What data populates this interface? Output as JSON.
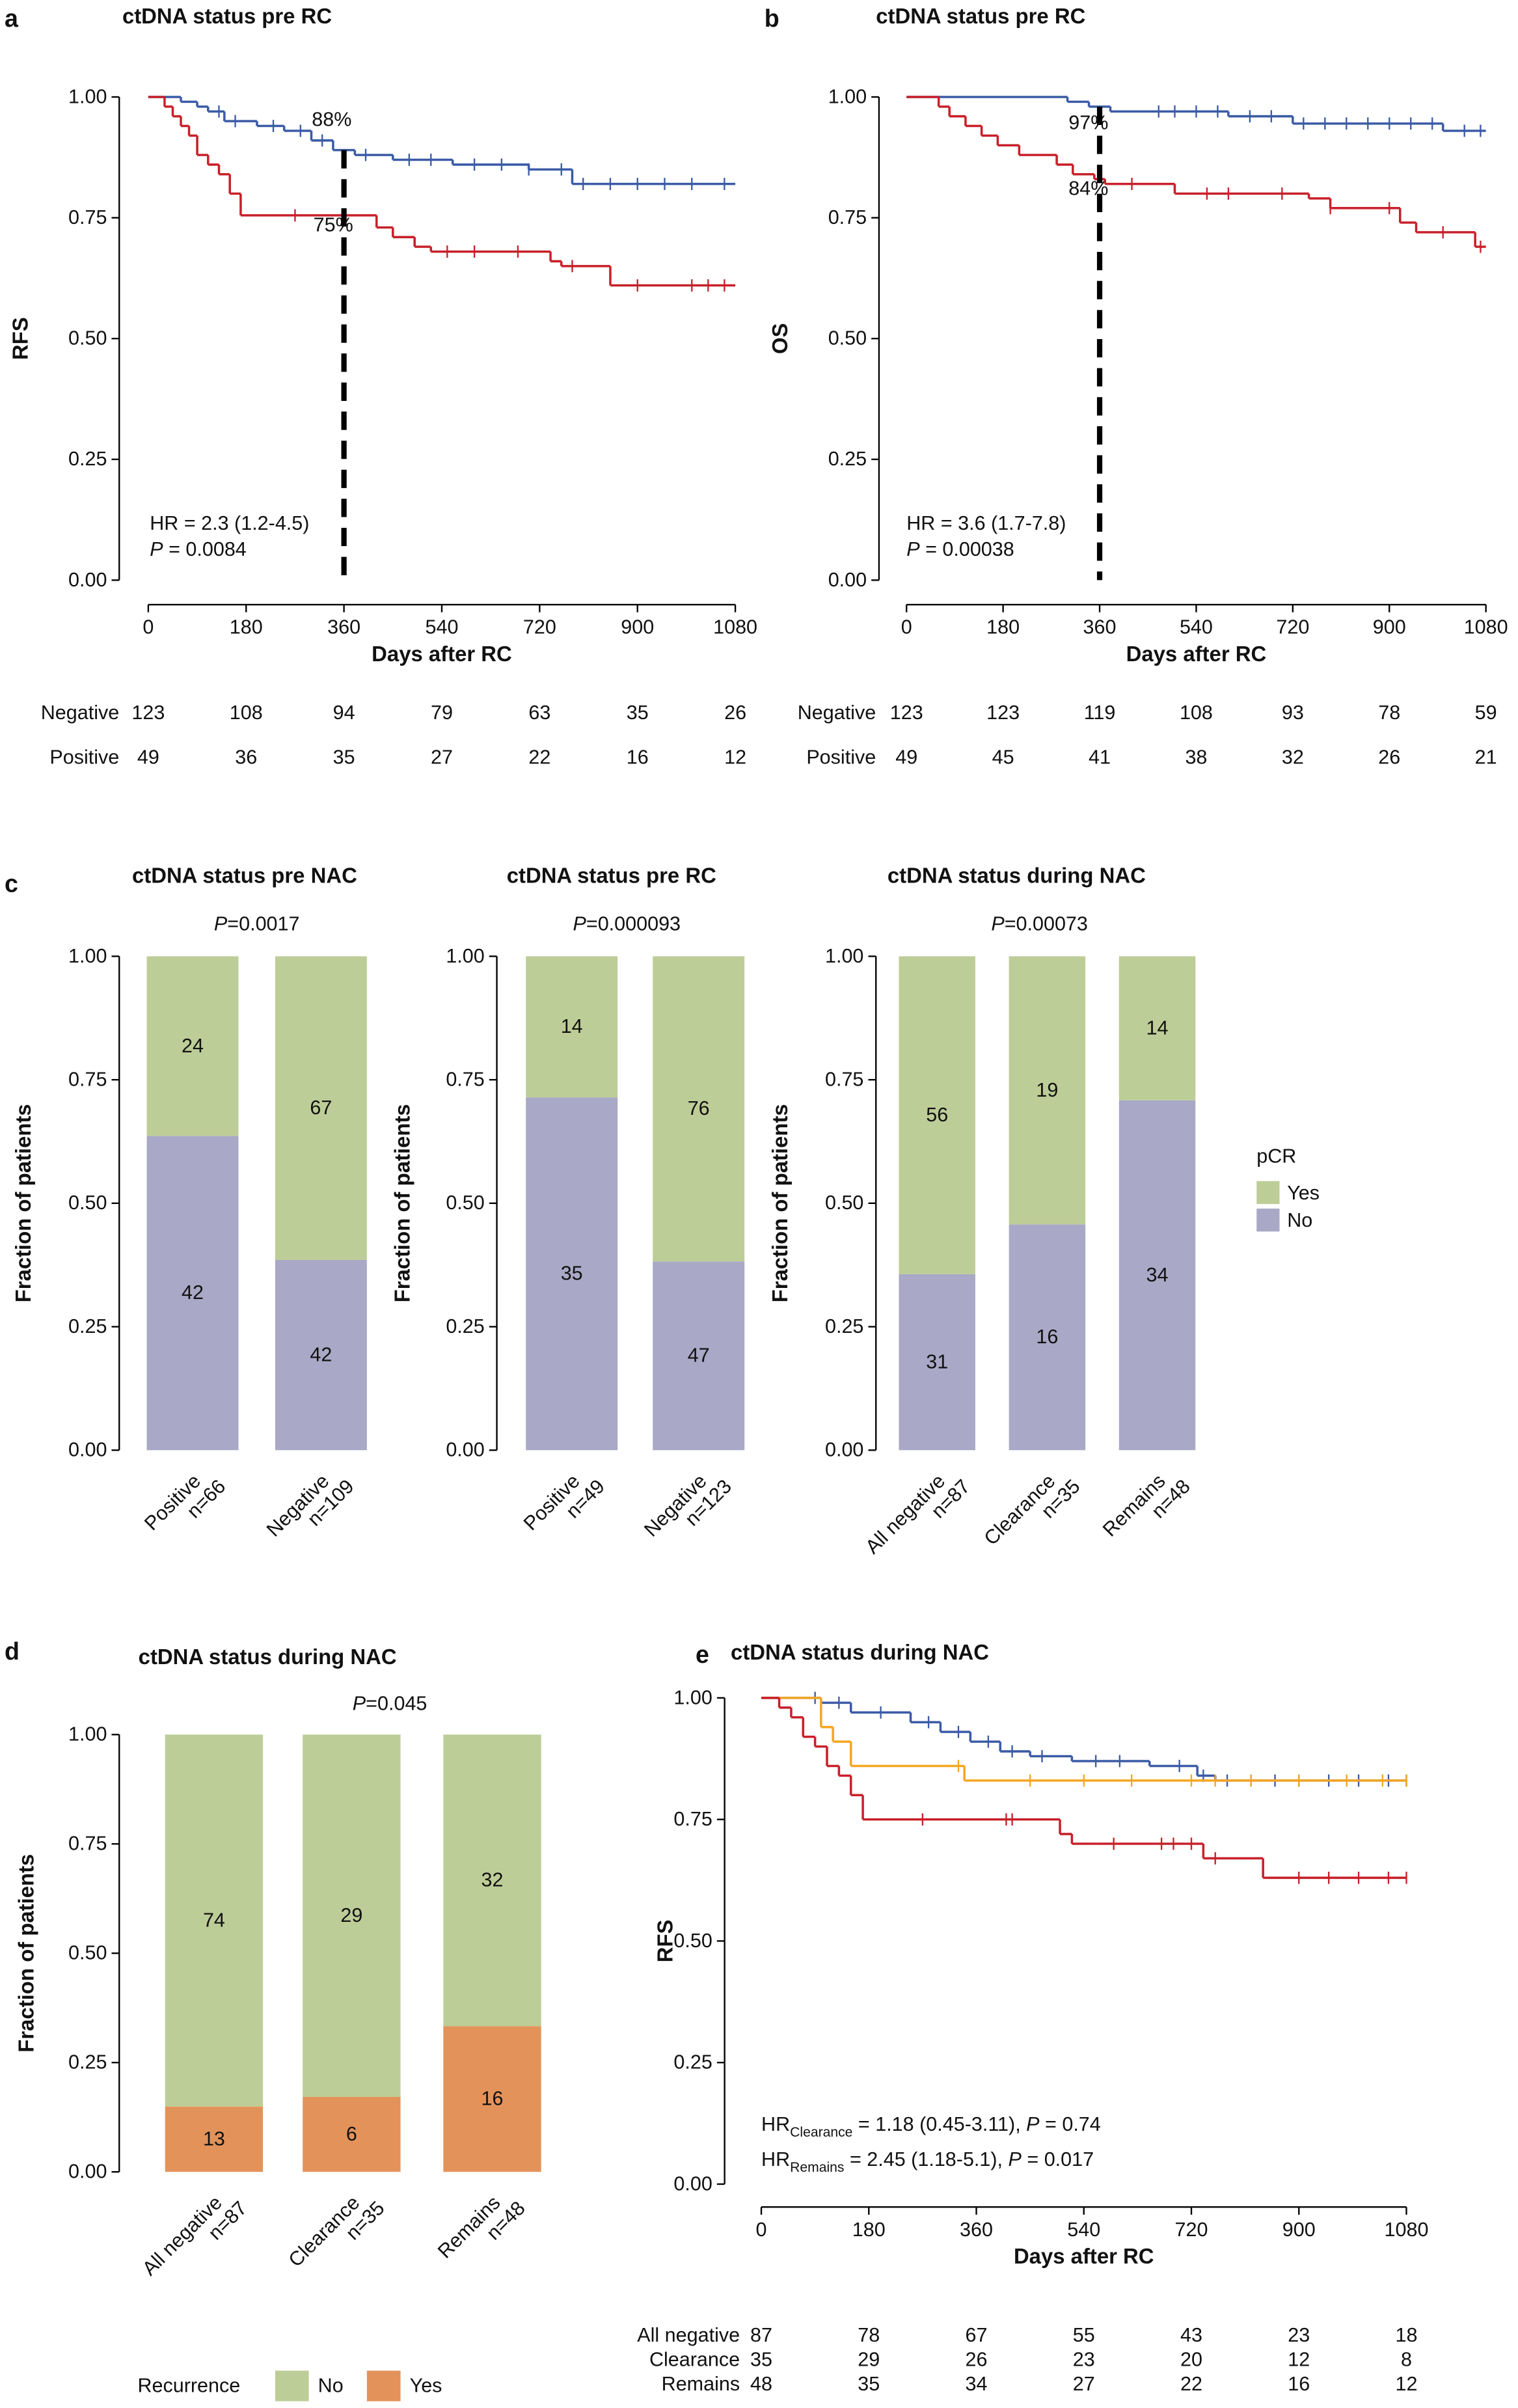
{
  "chart_data": [
    {
      "type": "km",
      "panel": "a",
      "title": "ctDNA status pre RC",
      "ylabel": "RFS",
      "xlabel": "Days after RC",
      "xlim": [
        0,
        1080
      ],
      "ylim": [
        0,
        1
      ],
      "xticks": [
        0,
        180,
        360,
        540,
        720,
        900,
        1080
      ],
      "yticks": [
        {
          "value": 0,
          "label": "0.00"
        },
        {
          "value": 0.25,
          "label": "0.25"
        },
        {
          "value": 0.5,
          "label": "0.50"
        },
        {
          "value": 0.75,
          "label": "0.75"
        },
        {
          "value": 1,
          "label": "1.00"
        }
      ],
      "reference_x": 360,
      "series": [
        {
          "name": "Negative",
          "color": "#3b5ba6",
          "x": [
            0,
            60,
            90,
            110,
            140,
            200,
            250,
            300,
            340,
            380,
            450,
            560,
            700,
            780
          ],
          "y": [
            1,
            0.99,
            0.98,
            0.97,
            0.95,
            0.94,
            0.93,
            0.91,
            0.89,
            0.88,
            0.87,
            0.86,
            0.85,
            0.82
          ],
          "censor_x": [
            130,
            160,
            230,
            280,
            320,
            400,
            480,
            520,
            600,
            650,
            700,
            760,
            800,
            850,
            900,
            950,
            1000,
            1060
          ],
          "at_risk": [
            123,
            108,
            94,
            79,
            63,
            35,
            26
          ]
        },
        {
          "name": "Positive",
          "color": "#c8202a",
          "x": [
            0,
            30,
            45,
            60,
            75,
            90,
            110,
            130,
            150,
            170,
            420,
            450,
            490,
            520,
            740,
            760,
            850
          ],
          "y": [
            1,
            0.98,
            0.96,
            0.94,
            0.92,
            0.88,
            0.86,
            0.84,
            0.8,
            0.755,
            0.73,
            0.71,
            0.69,
            0.68,
            0.66,
            0.65,
            0.61
          ],
          "censor_x": [
            270,
            360,
            550,
            600,
            680,
            780,
            900,
            1000,
            1030,
            1060
          ],
          "at_risk": [
            49,
            36,
            35,
            27,
            22,
            16,
            12
          ]
        }
      ],
      "annotations": [
        "88%",
        "75%"
      ],
      "hr": "HR = 2.3 (1.2-4.5)",
      "p_symbol": "P",
      "p_text": " = 0.0084"
    },
    {
      "type": "km",
      "panel": "b",
      "title": "ctDNA status pre RC",
      "ylabel": "OS",
      "xlabel": "Days after RC",
      "xlim": [
        0,
        1080
      ],
      "ylim": [
        0,
        1
      ],
      "xticks": [
        0,
        180,
        360,
        540,
        720,
        900,
        1080
      ],
      "yticks": [
        {
          "value": 0,
          "label": "0.00"
        },
        {
          "value": 0.25,
          "label": "0.25"
        },
        {
          "value": 0.5,
          "label": "0.50"
        },
        {
          "value": 0.75,
          "label": "0.75"
        },
        {
          "value": 1,
          "label": "1.00"
        }
      ],
      "reference_x": 360,
      "series": [
        {
          "name": "Negative",
          "color": "#3b5ba6",
          "x": [
            0,
            300,
            340,
            380,
            600,
            720,
            1000
          ],
          "y": [
            1,
            0.99,
            0.98,
            0.97,
            0.96,
            0.945,
            0.93
          ],
          "censor_x": [
            470,
            500,
            540,
            580,
            640,
            680,
            740,
            780,
            820,
            860,
            900,
            940,
            980,
            1040,
            1070
          ],
          "at_risk": [
            123,
            123,
            119,
            108,
            93,
            78,
            59
          ]
        },
        {
          "name": "Positive",
          "color": "#c8202a",
          "x": [
            0,
            60,
            80,
            110,
            140,
            170,
            210,
            280,
            310,
            350,
            370,
            500,
            750,
            790,
            920,
            950,
            1060
          ],
          "y": [
            1,
            0.98,
            0.96,
            0.94,
            0.92,
            0.9,
            0.88,
            0.86,
            0.84,
            0.83,
            0.82,
            0.8,
            0.79,
            0.77,
            0.74,
            0.72,
            0.69
          ],
          "censor_x": [
            420,
            560,
            600,
            700,
            790,
            900,
            1000,
            1070
          ],
          "at_risk": [
            49,
            45,
            41,
            38,
            32,
            26,
            21
          ]
        }
      ],
      "annotations": [
        "97%",
        "84%"
      ],
      "hr": "HR = 3.6 (1.7-7.8)",
      "p_symbol": "P",
      "p_text": " = 0.00038"
    },
    {
      "type": "stacked_bar",
      "panel": "c",
      "title": "ctDNA status pre NAC",
      "ylabel": "Fraction of patients",
      "normalize": true,
      "categories": [
        "Positive",
        "Negative"
      ],
      "category_counts": [
        "n=66",
        "n=109"
      ],
      "p_symbol": "P",
      "p_text": "=0.0017",
      "ylim": [
        0,
        1
      ],
      "yticks": [
        {
          "value": 0,
          "label": "0.00"
        },
        {
          "value": 0.25,
          "label": "0.25"
        },
        {
          "value": 0.5,
          "label": "0.50"
        },
        {
          "value": 0.75,
          "label": "0.75"
        },
        {
          "value": 1,
          "label": "1.00"
        }
      ],
      "series": [
        {
          "name": "No",
          "color": "#a9a8c6",
          "values": [
            42,
            42
          ]
        },
        {
          "name": "Yes",
          "color": "#bdcd97",
          "values": [
            24,
            67
          ]
        }
      ]
    },
    {
      "type": "stacked_bar",
      "title": "ctDNA status pre RC",
      "ylabel": "Fraction of patients",
      "normalize": true,
      "categories": [
        "Positive",
        "Negative"
      ],
      "category_counts": [
        "n=49",
        "n=123"
      ],
      "p_symbol": "P",
      "p_text": "=0.000093",
      "ylim": [
        0,
        1
      ],
      "yticks": [
        {
          "value": 0,
          "label": "0.00"
        },
        {
          "value": 0.25,
          "label": "0.25"
        },
        {
          "value": 0.5,
          "label": "0.50"
        },
        {
          "value": 0.75,
          "label": "0.75"
        },
        {
          "value": 1,
          "label": "1.00"
        }
      ],
      "series": [
        {
          "name": "No",
          "color": "#a9a8c6",
          "values": [
            35,
            47
          ]
        },
        {
          "name": "Yes",
          "color": "#bdcd97",
          "values": [
            14,
            76
          ]
        }
      ]
    },
    {
      "type": "stacked_bar",
      "title": "ctDNA status during NAC",
      "ylabel": "Fraction of patients",
      "normalize": true,
      "categories": [
        "All negative",
        "Clearance",
        "Remains"
      ],
      "category_counts": [
        "n=87",
        "n=35",
        "n=48"
      ],
      "p_symbol": "P",
      "p_text": "=0.00073",
      "ylim": [
        0,
        1
      ],
      "yticks": [
        {
          "value": 0,
          "label": "0.00"
        },
        {
          "value": 0.25,
          "label": "0.25"
        },
        {
          "value": 0.5,
          "label": "0.50"
        },
        {
          "value": 0.75,
          "label": "0.75"
        },
        {
          "value": 1,
          "label": "1.00"
        }
      ],
      "series": [
        {
          "name": "No",
          "color": "#a9a8c6",
          "values": [
            31,
            16,
            34
          ]
        },
        {
          "name": "Yes",
          "color": "#bdcd97",
          "values": [
            56,
            19,
            14
          ]
        }
      ],
      "legend_title": "pCR",
      "legend": "right"
    },
    {
      "type": "stacked_bar",
      "panel": "d",
      "title": "ctDNA status during NAC",
      "ylabel": "Fraction of patients",
      "normalize": true,
      "categories": [
        "All negative",
        "Clearance",
        "Remains"
      ],
      "category_counts": [
        "n=87",
        "n=35",
        "n=48"
      ],
      "p_symbol": "P",
      "p_text": "=0.045",
      "ylim": [
        0,
        1
      ],
      "yticks": [
        {
          "value": 0,
          "label": "0.00"
        },
        {
          "value": 0.25,
          "label": "0.25"
        },
        {
          "value": 0.5,
          "label": "0.50"
        },
        {
          "value": 0.75,
          "label": "0.75"
        },
        {
          "value": 1,
          "label": "1.00"
        }
      ],
      "series": [
        {
          "name": "Yes",
          "color": "#e3935a",
          "values": [
            13,
            6,
            16
          ]
        },
        {
          "name": "No",
          "color": "#bdcd97",
          "values": [
            74,
            29,
            32
          ]
        }
      ],
      "legend_title": "Recurrence",
      "legend": "bottom"
    },
    {
      "type": "km",
      "panel": "e",
      "title": "ctDNA status during NAC",
      "ylabel": "RFS",
      "xlabel": "Days after RC",
      "xlim": [
        0,
        1080
      ],
      "ylim": [
        0,
        1
      ],
      "xticks": [
        0,
        180,
        360,
        540,
        720,
        900,
        1080
      ],
      "yticks": [
        {
          "value": 0,
          "label": "0.00"
        },
        {
          "value": 0.25,
          "label": "0.25"
        },
        {
          "value": 0.5,
          "label": "0.50"
        },
        {
          "value": 0.75,
          "label": "0.75"
        },
        {
          "value": 1,
          "label": "1.00"
        }
      ],
      "series": [
        {
          "name": "All negative",
          "color": "#3b5ba6",
          "x": [
            0,
            100,
            150,
            250,
            300,
            350,
            400,
            450,
            520,
            650,
            730,
            760
          ],
          "y": [
            1,
            0.99,
            0.97,
            0.95,
            0.93,
            0.91,
            0.89,
            0.88,
            0.87,
            0.86,
            0.84,
            0.83
          ],
          "censor_x": [
            90,
            130,
            200,
            280,
            330,
            380,
            420,
            470,
            560,
            600,
            700,
            740,
            780,
            820,
            860,
            900,
            950,
            1000,
            1050,
            1080
          ],
          "at_risk": [
            87,
            78,
            67,
            55,
            43,
            23,
            18
          ]
        },
        {
          "name": "Clearance",
          "color": "#f5a623",
          "x": [
            0,
            100,
            120,
            150,
            340
          ],
          "y": [
            1,
            0.94,
            0.91,
            0.86,
            0.83
          ],
          "censor_x": [
            330,
            450,
            540,
            620,
            720,
            760,
            820,
            900,
            980,
            1040,
            1080
          ],
          "at_risk": [
            35,
            29,
            26,
            23,
            20,
            12,
            8
          ]
        },
        {
          "name": "Remains",
          "color": "#c8202a",
          "x": [
            0,
            30,
            50,
            70,
            90,
            110,
            130,
            150,
            170,
            500,
            520,
            560,
            740,
            840
          ],
          "y": [
            1,
            0.98,
            0.96,
            0.92,
            0.9,
            0.86,
            0.84,
            0.8,
            0.75,
            0.72,
            0.7,
            0.7,
            0.67,
            0.63
          ],
          "censor_x": [
            270,
            410,
            420,
            590,
            670,
            690,
            720,
            760,
            900,
            950,
            1000,
            1050,
            1080
          ],
          "at_risk": [
            48,
            35,
            34,
            27,
            22,
            16,
            12
          ]
        }
      ],
      "hr_lines": [
        {
          "prefix": "HR",
          "sub": "Clearance",
          "text": " = 1.18 (0.45-3.11), ",
          "p_symbol": "P",
          "p_text": " = 0.74"
        },
        {
          "prefix": "HR",
          "sub": "Remains",
          "text": " = 2.45 (1.18-5.1), ",
          "p_symbol": "P",
          "p_text": " = 0.017"
        }
      ]
    }
  ]
}
